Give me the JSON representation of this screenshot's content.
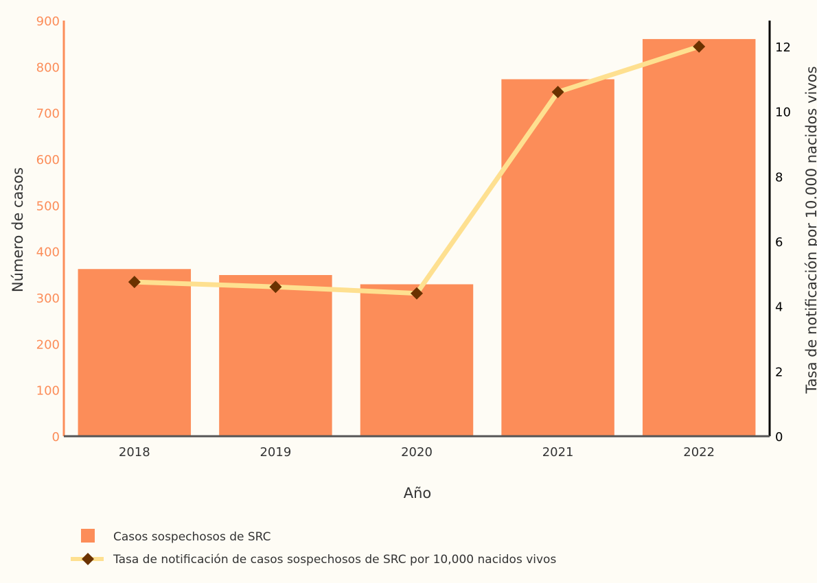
{
  "chart_data": {
    "type": "bar",
    "categories": [
      "2018",
      "2019",
      "2020",
      "2021",
      "2022"
    ],
    "xlabel": "Año",
    "ylabel_left": "Número de casos",
    "ylabel_right": "Tasa de notificación por 10.000 nacidos vivos",
    "ylim_left": [
      0,
      900
    ],
    "yticks_left": [
      0,
      100,
      200,
      300,
      400,
      500,
      600,
      700,
      800,
      900
    ],
    "ylim_right": [
      0,
      12.8
    ],
    "yticks_right": [
      0,
      2,
      4,
      6,
      8,
      10,
      12
    ],
    "grid": false,
    "legend_position": "bottom-left",
    "series": [
      {
        "name": "Casos sospechosos de SRC",
        "type": "bar",
        "axis": "left",
        "color": "#fc8d59",
        "values": [
          362,
          349,
          329,
          773,
          860
        ]
      },
      {
        "name": "Tasa de notificación de casos sospechosos de SRC por 10,000 nacidos vivos",
        "type": "line",
        "axis": "right",
        "line_color": "#fee090",
        "marker_color": "#6b3200",
        "marker": "diamond",
        "values": [
          4.75,
          4.6,
          4.4,
          10.6,
          12.0
        ]
      }
    ],
    "colors": {
      "left_axis": "#fc8d59",
      "right_axis": "#000000",
      "x_axis": "#555555",
      "background": "#fefcf5"
    }
  }
}
